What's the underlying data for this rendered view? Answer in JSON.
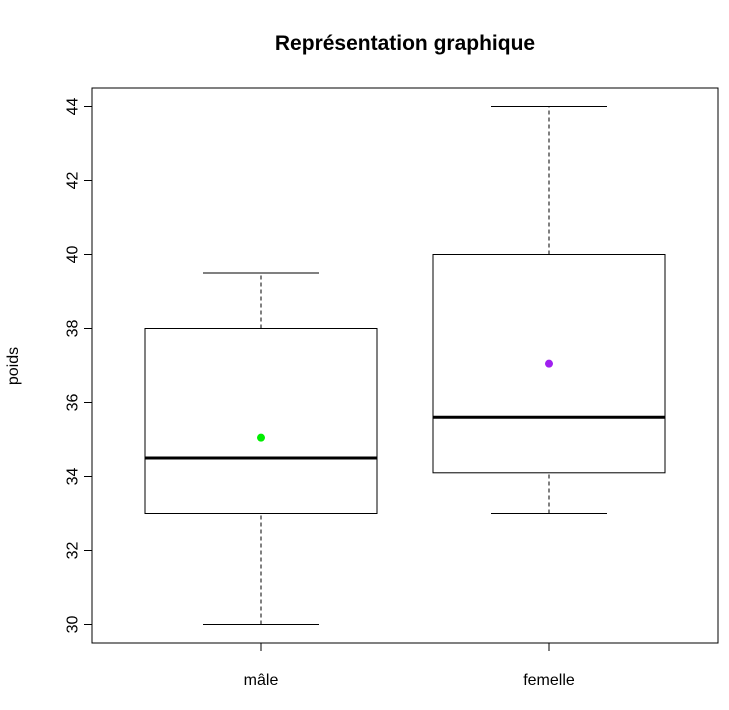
{
  "chart_data": {
    "type": "boxplot",
    "title": "Représentation graphique",
    "xlabel": "",
    "ylabel": "poids",
    "ylim": [
      29.5,
      44.5
    ],
    "y_ticks": [
      30,
      32,
      34,
      36,
      38,
      40,
      42,
      44
    ],
    "grid": false,
    "legend": "none",
    "categories": [
      "mâle",
      "femelle"
    ],
    "boxes": [
      {
        "category": "mâle",
        "whisker_low": 30,
        "q1": 33,
        "median": 34.5,
        "q3": 38,
        "whisker_high": 39.5,
        "mean": 35.05,
        "mean_color": "#00ee00"
      },
      {
        "category": "femelle",
        "whisker_low": 33,
        "q1": 34.1,
        "median": 35.6,
        "q3": 40,
        "whisker_high": 44,
        "mean": 37.05,
        "mean_color": "#a020f0"
      }
    ]
  }
}
